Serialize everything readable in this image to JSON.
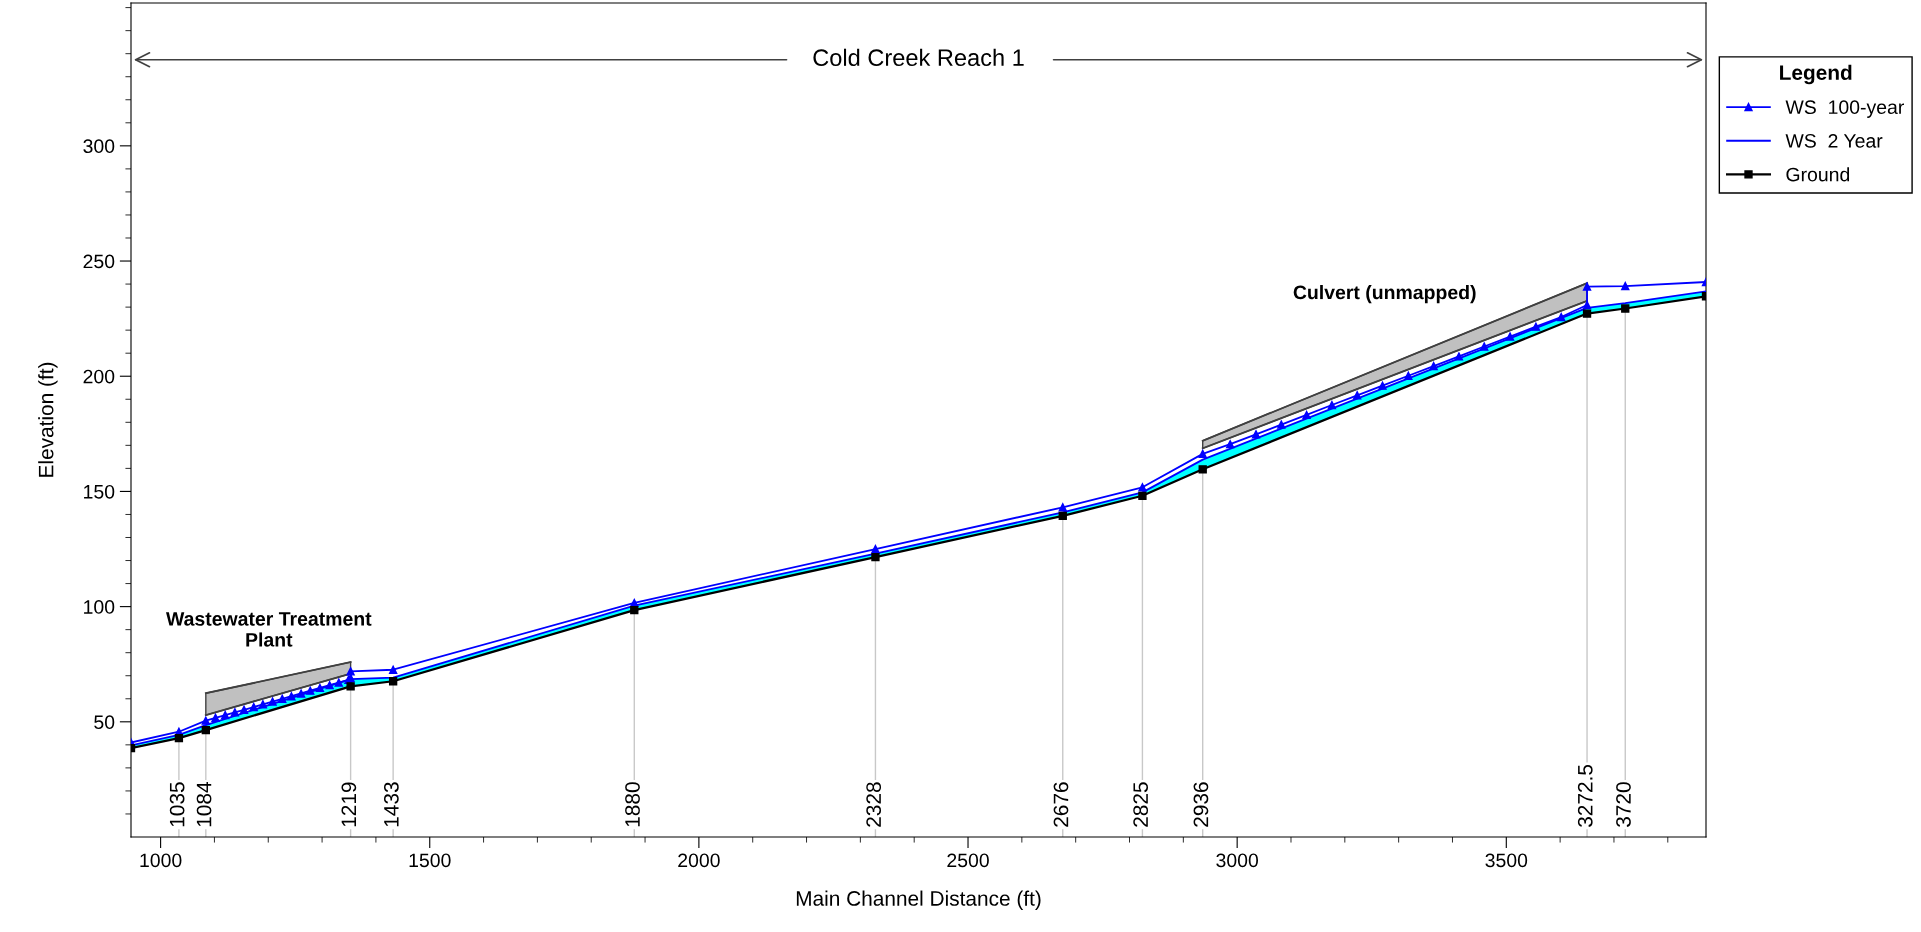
{
  "chart_data": {
    "type": "line",
    "xlabel": "Main Channel Distance (ft)",
    "ylabel": "Elevation (ft)",
    "legend_title": "Legend",
    "xlim": [
      945,
      3871
    ],
    "ylim": [
      0,
      362
    ],
    "xticks": [
      1000,
      1500,
      2000,
      2500,
      3000,
      3500,
      {
        "value": 1100,
        "label": null
      },
      {
        "value": 1200,
        "label": null
      },
      {
        "value": 1300,
        "label": null
      },
      {
        "value": 1400,
        "label": null
      },
      {
        "value": 1600,
        "label": null
      },
      {
        "value": 1700,
        "label": null
      },
      {
        "value": 1800,
        "label": null
      },
      {
        "value": 1900,
        "label": null
      },
      {
        "value": 2100,
        "label": null
      },
      {
        "value": 2200,
        "label": null
      },
      {
        "value": 2300,
        "label": null
      },
      {
        "value": 2400,
        "label": null
      },
      {
        "value": 2600,
        "label": null
      },
      {
        "value": 2700,
        "label": null
      },
      {
        "value": 2800,
        "label": null
      },
      {
        "value": 2900,
        "label": null
      },
      {
        "value": 3100,
        "label": null
      },
      {
        "value": 3200,
        "label": null
      },
      {
        "value": 3300,
        "label": null
      },
      {
        "value": 3400,
        "label": null
      },
      {
        "value": 3600,
        "label": null
      },
      {
        "value": 3700,
        "label": null
      },
      {
        "value": 3800,
        "label": null
      }
    ],
    "yticks": [
      50,
      100,
      150,
      200,
      250,
      300,
      {
        "value": 10,
        "label": null
      },
      {
        "value": 20,
        "label": null
      },
      {
        "value": 30,
        "label": null
      },
      {
        "value": 40,
        "label": null
      },
      {
        "value": 60,
        "label": null
      },
      {
        "value": 70,
        "label": null
      },
      {
        "value": 80,
        "label": null
      },
      {
        "value": 90,
        "label": null
      },
      {
        "value": 110,
        "label": null
      },
      {
        "value": 120,
        "label": null
      },
      {
        "value": 130,
        "label": null
      },
      {
        "value": 140,
        "label": null
      },
      {
        "value": 160,
        "label": null
      },
      {
        "value": 170,
        "label": null
      },
      {
        "value": 180,
        "label": null
      },
      {
        "value": 190,
        "label": null
      },
      {
        "value": 210,
        "label": null
      },
      {
        "value": 220,
        "label": null
      },
      {
        "value": 230,
        "label": null
      },
      {
        "value": 240,
        "label": null
      },
      {
        "value": 260,
        "label": null
      },
      {
        "value": 270,
        "label": null
      },
      {
        "value": 280,
        "label": null
      },
      {
        "value": 290,
        "label": null
      },
      {
        "value": 310,
        "label": null
      },
      {
        "value": 320,
        "label": null
      },
      {
        "value": 330,
        "label": null
      },
      {
        "value": 340,
        "label": null
      },
      {
        "value": 350,
        "label": null
      },
      {
        "value": 360,
        "label": null
      }
    ],
    "legend": "right",
    "grid": false,
    "series": [
      {
        "type": "line",
        "color": "#404040",
        "marker": "none",
        "x": [
          1084,
          1353
        ],
        "values": [
          62.4,
          75.9
        ]
      },
      {
        "type": "line",
        "color": "#404040",
        "marker": "none",
        "x": [
          1084,
          1353
        ],
        "values": [
          52.9,
          70.9
        ]
      },
      {
        "type": "line",
        "color": "#404040",
        "marker": "none",
        "x": [
          2936,
          3650
        ],
        "values": [
          172.0,
          240.4
        ]
      },
      {
        "type": "line",
        "color": "#404040",
        "marker": "none",
        "x": [
          2936,
          3650
        ],
        "values": [
          168.7,
          232.7
        ]
      },
      {
        "name": "WS  100-year",
        "color": "#0000ff",
        "marker": "triangle",
        "x": [
          945,
          1034,
          1084,
          1102,
          1120,
          1138,
          1155,
          1173,
          1190,
          1208,
          1226,
          1243,
          1261,
          1278,
          1296,
          1314,
          1331,
          1349,
          1353,
          1353,
          1432,
          1880,
          2328,
          2676,
          2824,
          2936,
          2987,
          3035,
          3082,
          3129,
          3176,
          3223,
          3270,
          3318,
          3365,
          3412,
          3459,
          3507,
          3555,
          3602,
          3650,
          3650,
          3721,
          3871
        ],
        "values": [
          41.0,
          45.7,
          50.5,
          51.7,
          52.9,
          54.1,
          55.2,
          56.4,
          57.6,
          58.8,
          60.0,
          61.1,
          62.3,
          63.5,
          64.7,
          65.9,
          67.0,
          68.2,
          69.0,
          71.9,
          72.6,
          101.6,
          125.0,
          143.1,
          151.8,
          166.3,
          170.5,
          174.8,
          179.0,
          183.2,
          187.5,
          191.7,
          195.9,
          200.2,
          204.4,
          208.6,
          212.9,
          217.2,
          221.5,
          225.7,
          230.9,
          238.9,
          239.1,
          240.9
        ]
      },
      {
        "name": "WS  2 Year",
        "color": "#0000ff",
        "marker": "none",
        "x": [
          945,
          1034,
          1084,
          1353,
          1432,
          1880,
          2328,
          2676,
          2824,
          2936,
          3650,
          3721,
          3871
        ],
        "values": [
          39.8,
          44.3,
          48.6,
          68.5,
          69.2,
          100.4,
          123.0,
          140.9,
          149.6,
          163.8,
          229.7,
          231.7,
          236.8
        ]
      },
      {
        "name": "Ground",
        "color": "#000000",
        "marker": "square",
        "x": [
          945,
          1034,
          1084,
          1353,
          1432,
          1880,
          2328,
          2676,
          2824,
          2936,
          3650,
          3721,
          3871
        ],
        "values": [
          38.6,
          42.9,
          46.4,
          65.4,
          67.6,
          98.5,
          121.5,
          139.4,
          148.1,
          159.6,
          227.2,
          229.4,
          234.7
        ]
      }
    ],
    "ref_lines": [
      {
        "axis": "x",
        "value": 1034,
        "color": "#c8c8c8"
      },
      {
        "axis": "x",
        "value": 1084,
        "color": "#c8c8c8"
      },
      {
        "axis": "x",
        "value": 1353,
        "color": "#c8c8c8"
      },
      {
        "axis": "x",
        "value": 1432,
        "color": "#c8c8c8"
      },
      {
        "axis": "x",
        "value": 1880,
        "color": "#c8c8c8"
      },
      {
        "axis": "x",
        "value": 2328,
        "color": "#c8c8c8"
      },
      {
        "axis": "x",
        "value": 2676,
        "color": "#c8c8c8"
      },
      {
        "axis": "x",
        "value": 2824,
        "color": "#c8c8c8"
      },
      {
        "axis": "x",
        "value": 2936,
        "color": "#c8c8c8"
      },
      {
        "axis": "x",
        "value": 3650,
        "color": "#c8c8c8"
      },
      {
        "axis": "x",
        "value": 3721,
        "color": "#c8c8c8"
      }
    ],
    "annotations": [
      "Cold Creek Reach 1",
      "Wastewater Treatment\nPlant",
      "Culvert (unmapped)",
      {
        "text": "1035",
        "x": 1034
      },
      {
        "text": "1084",
        "x": 1084
      },
      {
        "text": "1219",
        "x": 1353
      },
      {
        "text": "1433",
        "x": 1432
      },
      {
        "text": "1880",
        "x": 1880
      },
      {
        "text": "2328",
        "x": 2328
      },
      {
        "text": "2676",
        "x": 2676
      },
      {
        "text": "2825",
        "x": 2824
      },
      {
        "text": "2936",
        "x": 2936
      },
      {
        "text": "3272.5",
        "x": 3650
      },
      {
        "text": "3720",
        "x": 3721
      }
    ]
  }
}
